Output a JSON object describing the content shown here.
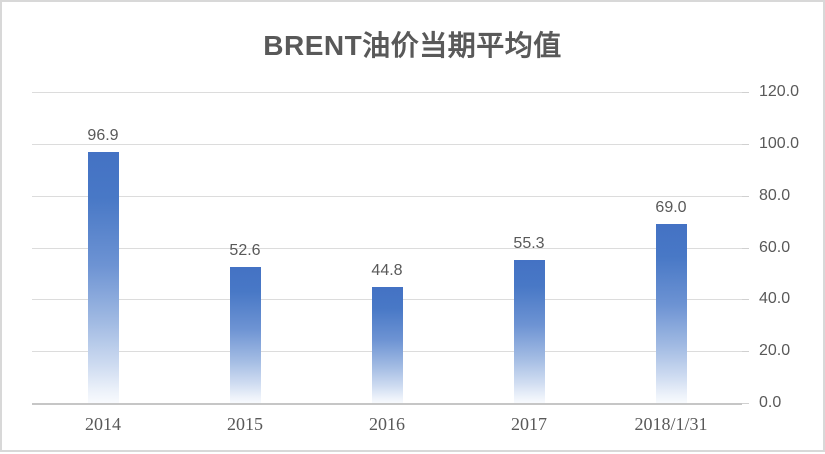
{
  "chart_data": {
    "type": "bar",
    "title": "BRENT油价当期平均值",
    "categories": [
      "2014",
      "2015",
      "2016",
      "2017",
      "2018/1/31"
    ],
    "values": [
      96.9,
      52.6,
      44.8,
      55.3,
      69.0
    ],
    "data_labels": [
      "96.9",
      "52.6",
      "44.8",
      "55.3",
      "69.0"
    ],
    "xlabel": "",
    "ylabel": "",
    "ylim": [
      0,
      120
    ],
    "y_tick_interval": 20,
    "y_ticks": [
      {
        "value": 120,
        "label": "120.0"
      },
      {
        "value": 100,
        "label": "100.0"
      },
      {
        "value": 80,
        "label": "80.0"
      },
      {
        "value": 60,
        "label": "60.0"
      },
      {
        "value": 40,
        "label": "40.0"
      },
      {
        "value": 20,
        "label": "20.0"
      },
      {
        "value": 0,
        "label": "0.0"
      }
    ],
    "grid": true,
    "legend": "none",
    "y_axis_side": "right",
    "colors": {
      "bar_gradient_top": "#4472c4",
      "bar_gradient_bottom": "#f9fbfe",
      "gridline": "#dcdcdc",
      "axis_line": "#c6c6c6",
      "text": "#595959",
      "frame_border": "#d8d8d8",
      "background": "#ffffff"
    }
  }
}
